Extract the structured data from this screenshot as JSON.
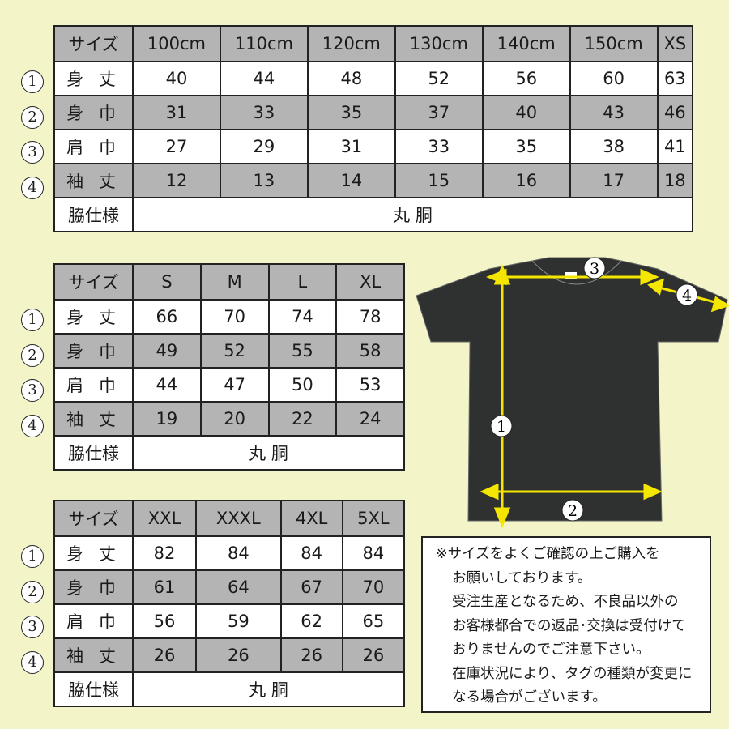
{
  "tables": [
    {
      "header": [
        "サイズ",
        "100cm",
        "110cm",
        "120cm",
        "130cm",
        "140cm",
        "150cm",
        "XS"
      ],
      "rows": [
        {
          "num": "1",
          "label": "身 丈",
          "values": [
            "40",
            "44",
            "48",
            "52",
            "56",
            "60",
            "63"
          ]
        },
        {
          "num": "2",
          "label": "身 巾",
          "values": [
            "31",
            "33",
            "35",
            "37",
            "40",
            "43",
            "46"
          ]
        },
        {
          "num": "3",
          "label": "肩 巾",
          "values": [
            "27",
            "29",
            "31",
            "33",
            "35",
            "38",
            "41"
          ]
        },
        {
          "num": "4",
          "label": "袖 丈",
          "values": [
            "12",
            "13",
            "14",
            "15",
            "16",
            "17",
            "18"
          ]
        }
      ],
      "side_label": "脇仕様",
      "side_value": "丸 胴"
    },
    {
      "header": [
        "サイズ",
        "S",
        "M",
        "L",
        "XL"
      ],
      "rows": [
        {
          "num": "1",
          "label": "身 丈",
          "values": [
            "66",
            "70",
            "74",
            "78"
          ]
        },
        {
          "num": "2",
          "label": "身 巾",
          "values": [
            "49",
            "52",
            "55",
            "58"
          ]
        },
        {
          "num": "3",
          "label": "肩 巾",
          "values": [
            "44",
            "47",
            "50",
            "53"
          ]
        },
        {
          "num": "4",
          "label": "袖 丈",
          "values": [
            "19",
            "20",
            "22",
            "24"
          ]
        }
      ],
      "side_label": "脇仕様",
      "side_value": "丸 胴"
    },
    {
      "header": [
        "サイズ",
        "XXL",
        "XXXL",
        "4XL",
        "5XL"
      ],
      "rows": [
        {
          "num": "1",
          "label": "身 丈",
          "values": [
            "82",
            "84",
            "84",
            "84"
          ]
        },
        {
          "num": "2",
          "label": "身 巾",
          "values": [
            "61",
            "64",
            "67",
            "70"
          ]
        },
        {
          "num": "3",
          "label": "肩 巾",
          "values": [
            "56",
            "59",
            "62",
            "65"
          ]
        },
        {
          "num": "4",
          "label": "袖 丈",
          "values": [
            "26",
            "26",
            "26",
            "26"
          ]
        }
      ],
      "side_label": "脇仕様",
      "side_value": "丸 胴"
    }
  ],
  "diagram": {
    "markers": [
      "1",
      "2",
      "3",
      "4"
    ],
    "shirt_color": "#2f3130",
    "arrow_color": "#f5e600"
  },
  "note": {
    "lines": [
      "※サイズをよくご確認の上ご購入を",
      "お願いしております。",
      "受注生産となるため、不良品以外の",
      "お客様都合での返品･交換は受付けて",
      "おりませんのでご注意下さい。",
      "在庫状況により、タグの種類が変更に",
      "なる場合がございます。"
    ]
  },
  "colors": {
    "background": "#f3f5c9",
    "header_gray": "#b4b4b4"
  }
}
